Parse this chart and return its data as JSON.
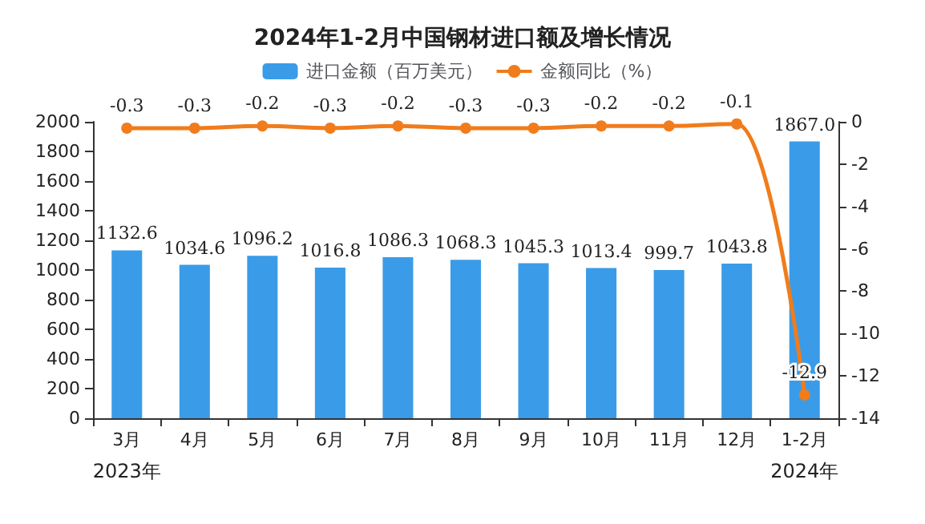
{
  "chart_data": {
    "type": "bar",
    "title": "2024年1-2月中国钢材进口额及增长情况",
    "categories": [
      "3月",
      "4月",
      "5月",
      "6月",
      "7月",
      "8月",
      "9月",
      "10月",
      "11月",
      "12月",
      "1-2月"
    ],
    "series": [
      {
        "name": "进口金额（百万美元）",
        "color": "#3a9ce8",
        "values": [
          1132.6,
          1034.6,
          1096.2,
          1016.8,
          1086.3,
          1068.3,
          1045.3,
          1013.4,
          999.7,
          1043.8,
          1867.0
        ],
        "value_labels": [
          "1132.6",
          "1034.6",
          "1096.2",
          "1016.8",
          "1086.3",
          "1068.3",
          "1045.3",
          "1013.4",
          "999.7",
          "1043.8",
          "1867.0"
        ]
      },
      {
        "name": "金额同比（%）",
        "type": "line",
        "axis": "y2",
        "color": "#f07c1c",
        "values": [
          -0.3,
          -0.3,
          -0.2,
          -0.3,
          -0.2,
          -0.3,
          -0.3,
          -0.2,
          -0.2,
          -0.1,
          -12.9
        ],
        "value_labels": [
          "-0.3",
          "-0.3",
          "-0.2",
          "-0.3",
          "-0.2",
          "-0.3",
          "-0.3",
          "-0.2",
          "-0.2",
          "-0.1",
          "-12.9"
        ]
      }
    ],
    "ylim": [
      0,
      2000
    ],
    "yticks": [
      0,
      200,
      400,
      600,
      800,
      1000,
      1200,
      1400,
      1600,
      1800,
      2000
    ],
    "y2lim": [
      -14,
      0
    ],
    "y2ticks": [
      -14,
      -12,
      -10,
      -8,
      -6,
      -4,
      -2,
      0
    ],
    "legend": "top",
    "grid": false,
    "marker": "circle",
    "annotations": [
      "2023年",
      "2024年"
    ]
  }
}
